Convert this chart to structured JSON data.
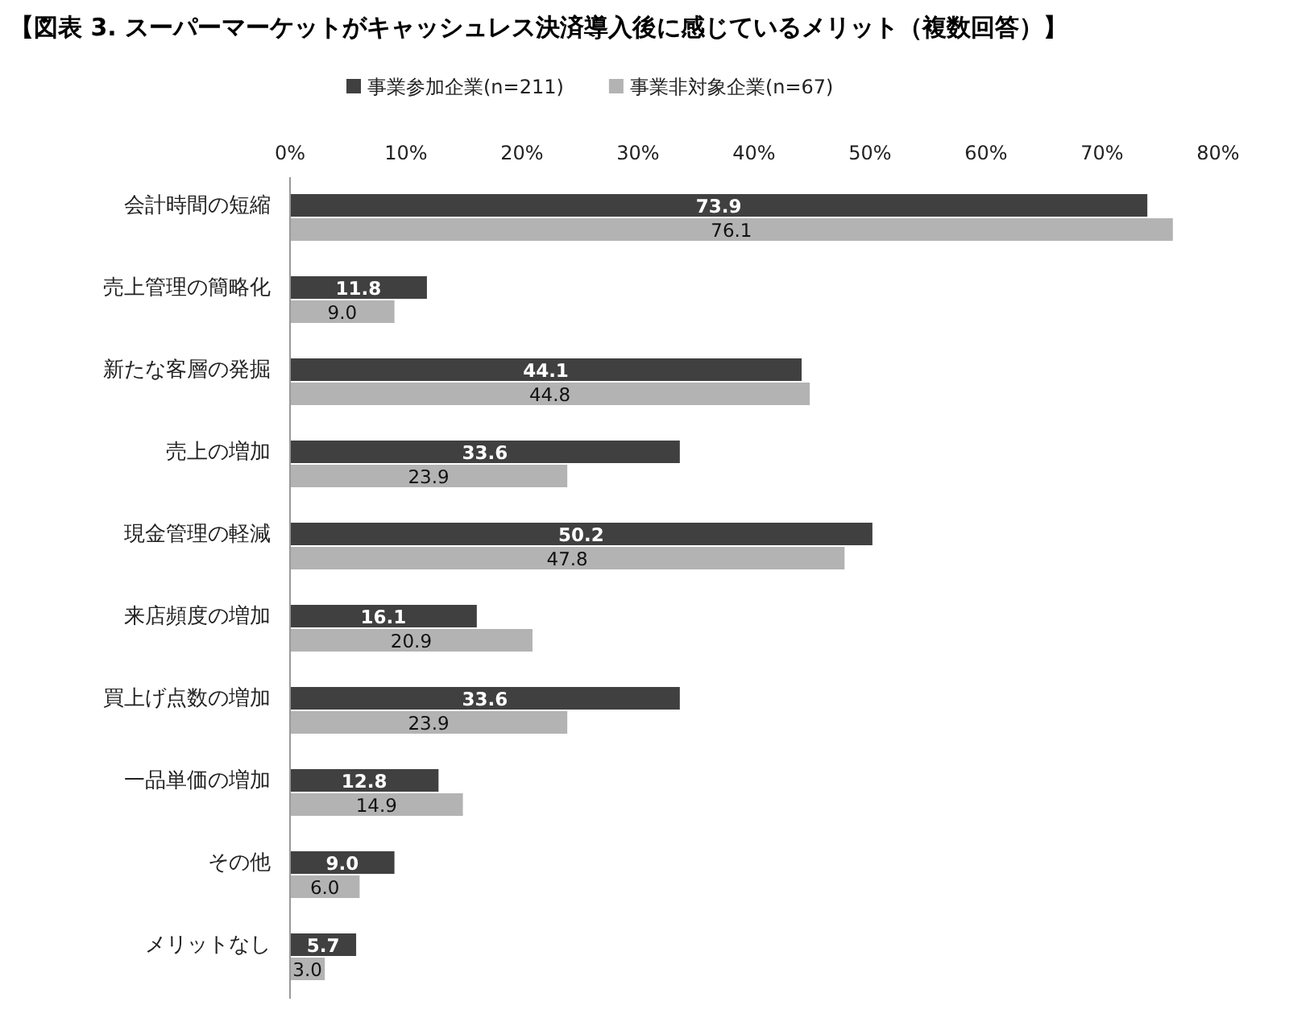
{
  "chart_data": {
    "type": "bar",
    "orientation": "horizontal",
    "title": "【図表 3. スーパーマーケットがキャッシュレス決済導入後に感じているメリット（複数回答）】",
    "categories": [
      "会計時間の短縮",
      "売上管理の簡略化",
      "新たな客層の発掘",
      "売上の増加",
      "現金管理の軽減",
      "来店頻度の増加",
      "買上げ点数の増加",
      "一品単価の増加",
      "その他",
      "メリットなし"
    ],
    "series": [
      {
        "name": "事業参加企業(n=211)",
        "color": "#404040",
        "values": [
          73.9,
          11.8,
          44.1,
          33.6,
          50.2,
          16.1,
          33.6,
          12.8,
          9.0,
          5.7
        ],
        "value_labels": [
          "73.9",
          "11.8",
          "44.1",
          "33.6",
          "50.2",
          "16.1",
          "33.6",
          "12.8",
          "9.0",
          "5.7"
        ]
      },
      {
        "name": "事業非対象企業(n=67)",
        "color": "#b3b3b3",
        "values": [
          76.1,
          9.0,
          44.8,
          23.9,
          47.8,
          20.9,
          23.9,
          14.9,
          6.0,
          3.0
        ],
        "value_labels": [
          "76.1",
          "9.0",
          "44.8",
          "23.9",
          "47.8",
          "20.9",
          "23.9",
          "14.9",
          "6.0",
          "3.0"
        ]
      }
    ],
    "xlim": [
      0,
      80
    ],
    "xticks": [
      {
        "value": 0,
        "label": "0%"
      },
      {
        "value": 10,
        "label": "10%"
      },
      {
        "value": 20,
        "label": "20%"
      },
      {
        "value": 30,
        "label": "30%"
      },
      {
        "value": 40,
        "label": "40%"
      },
      {
        "value": 50,
        "label": "50%"
      },
      {
        "value": 60,
        "label": "60%"
      },
      {
        "value": 70,
        "label": "70%"
      },
      {
        "value": 80,
        "label": "80%"
      }
    ],
    "grid": false,
    "legend": "top"
  }
}
